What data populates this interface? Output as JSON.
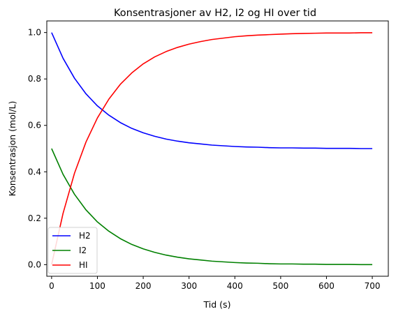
{
  "chart_data": {
    "type": "line",
    "title": "Konsentrasjoner av H2, I2 og HI over tid",
    "xlabel": "Tid (s)",
    "ylabel": "Konsentrasjon (mol/L)",
    "xlim": [
      -10.5,
      735
    ],
    "ylim": [
      -0.05,
      1.05
    ],
    "xticks": [
      0,
      100,
      200,
      300,
      400,
      500,
      600,
      700
    ],
    "xtick_labels": [
      "0",
      "100",
      "200",
      "300",
      "400",
      "500",
      "600",
      "700"
    ],
    "yticks": [
      0.0,
      0.2,
      0.4,
      0.6,
      0.8,
      1.0
    ],
    "ytick_labels": [
      "0.0",
      "0.2",
      "0.4",
      "0.6",
      "0.8",
      "1.0"
    ],
    "grid": false,
    "legend_position": "lower-left",
    "x": [
      0,
      25,
      50,
      75,
      100,
      125,
      150,
      175,
      200,
      225,
      250,
      275,
      300,
      325,
      350,
      375,
      400,
      425,
      450,
      475,
      500,
      525,
      550,
      575,
      600,
      625,
      650,
      675,
      700
    ],
    "series": [
      {
        "name": "H2",
        "color": "#0000ff",
        "values": [
          1.0,
          0.889,
          0.803,
          0.736,
          0.684,
          0.644,
          0.612,
          0.587,
          0.568,
          0.553,
          0.541,
          0.532,
          0.525,
          0.52,
          0.515,
          0.512,
          0.509,
          0.507,
          0.506,
          0.504,
          0.503,
          0.503,
          0.502,
          0.502,
          0.501,
          0.501,
          0.501,
          0.5,
          0.5
        ]
      },
      {
        "name": "I2",
        "color": "#008000",
        "values": [
          0.5,
          0.389,
          0.303,
          0.236,
          0.184,
          0.144,
          0.112,
          0.087,
          0.068,
          0.053,
          0.041,
          0.032,
          0.025,
          0.02,
          0.015,
          0.012,
          0.009,
          0.007,
          0.006,
          0.004,
          0.003,
          0.003,
          0.002,
          0.002,
          0.001,
          0.001,
          0.001,
          0.0,
          0.0
        ]
      },
      {
        "name": "HI",
        "color": "#ff0000",
        "values": [
          0.0,
          0.221,
          0.394,
          0.528,
          0.632,
          0.713,
          0.777,
          0.826,
          0.865,
          0.895,
          0.918,
          0.936,
          0.95,
          0.961,
          0.97,
          0.976,
          0.982,
          0.986,
          0.989,
          0.991,
          0.993,
          0.995,
          0.996,
          0.997,
          0.998,
          0.998,
          0.998,
          0.999,
          0.999
        ]
      }
    ]
  }
}
